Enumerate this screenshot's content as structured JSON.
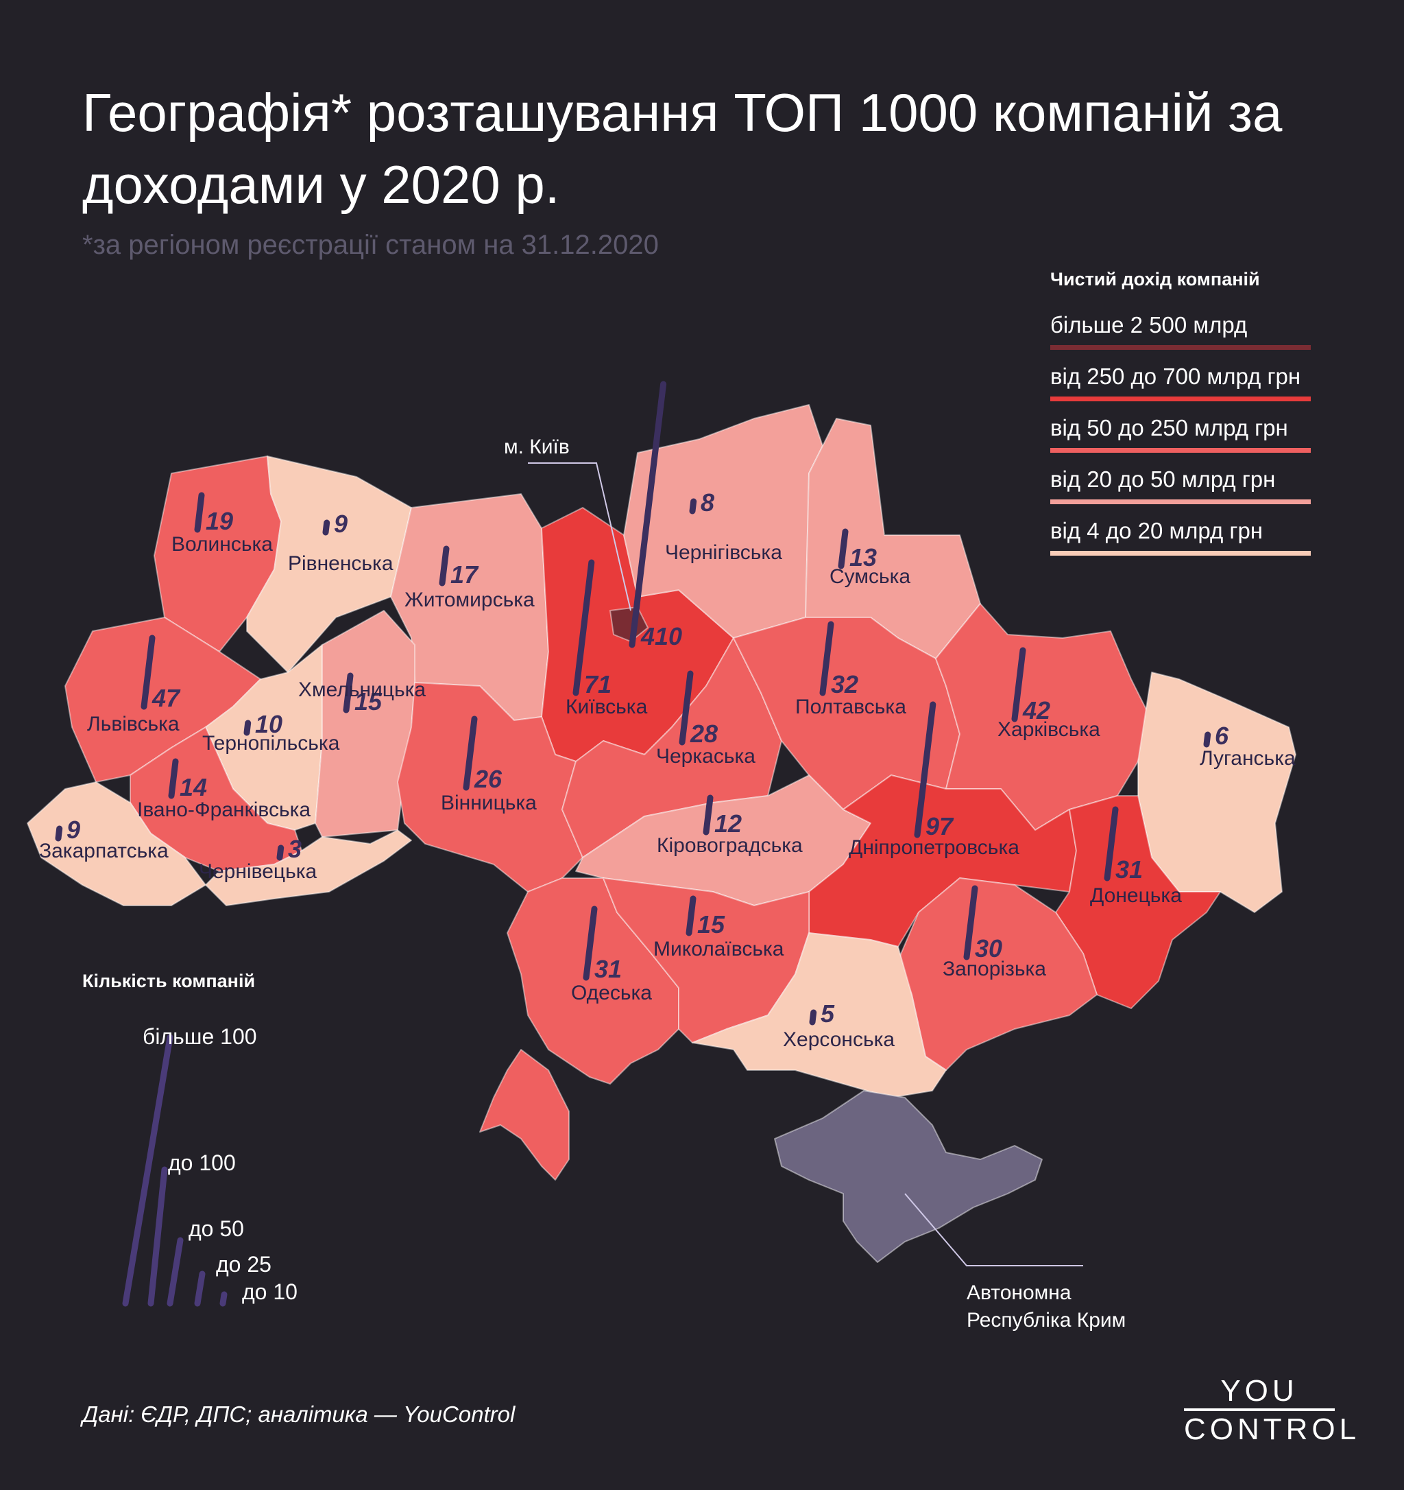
{
  "title": "Географія* розташування ТОП 1000 компаній за доходами у 2020 р.",
  "subtitle": "*за регіоном реєстрації станом на 31.12.2020",
  "income_legend": {
    "heading": "Чистий дохід компаній",
    "items": [
      {
        "label": "більше 2 500 млрд",
        "color": "#7a2c33"
      },
      {
        "label": "від 250 до 700 млрд грн",
        "color": "#e83b3b"
      },
      {
        "label": "від 50 до 250 млрд грн",
        "color": "#ef6060"
      },
      {
        "label": "від 20 до 50 млрд грн",
        "color": "#f3a09a"
      },
      {
        "label": "від 4 до 20 млрд грн",
        "color": "#f9cdb8"
      }
    ]
  },
  "count_legend": {
    "heading": "Кількість компаній",
    "items": [
      "більше 100",
      "до 100",
      "до 50",
      "до 25",
      "до 10"
    ]
  },
  "regions": [
    {
      "name": "Волинська",
      "count": 19
    },
    {
      "name": "Рівненська",
      "count": 9
    },
    {
      "name": "Житомирська",
      "count": 17
    },
    {
      "name": "Київська",
      "count": 71
    },
    {
      "name": "Чернігівська",
      "count": 8
    },
    {
      "name": "Сумська",
      "count": 13
    },
    {
      "name": "Львівська",
      "count": 47
    },
    {
      "name": "Тернопільська",
      "count": 10
    },
    {
      "name": "Хмельницька",
      "count": 15
    },
    {
      "name": "Вінницька",
      "count": 26
    },
    {
      "name": "Черкаська",
      "count": 28
    },
    {
      "name": "Полтавська",
      "count": 32
    },
    {
      "name": "Харківська",
      "count": 42
    },
    {
      "name": "Луганська",
      "count": 6
    },
    {
      "name": "Івано-Франківська",
      "count": 14
    },
    {
      "name": "Закарпатська",
      "count": 9
    },
    {
      "name": "Чернівецька",
      "count": 3
    },
    {
      "name": "Кіровоградська",
      "count": 12
    },
    {
      "name": "Дніпропетровська",
      "count": 97
    },
    {
      "name": "Донецька",
      "count": 31
    },
    {
      "name": "Одеська",
      "count": 31
    },
    {
      "name": "Миколаївська",
      "count": 15
    },
    {
      "name": "Запорізька",
      "count": 30
    },
    {
      "name": "Херсонська",
      "count": 5
    }
  ],
  "kyiv_city": {
    "name": "м. Київ",
    "count": 410
  },
  "crimea": "Автономна Республіка Крим",
  "footer": "Дані: ЄДР, ДПС; аналітика — YouControl",
  "logo": {
    "top": "YOU",
    "bottom": "CONTROL"
  }
}
